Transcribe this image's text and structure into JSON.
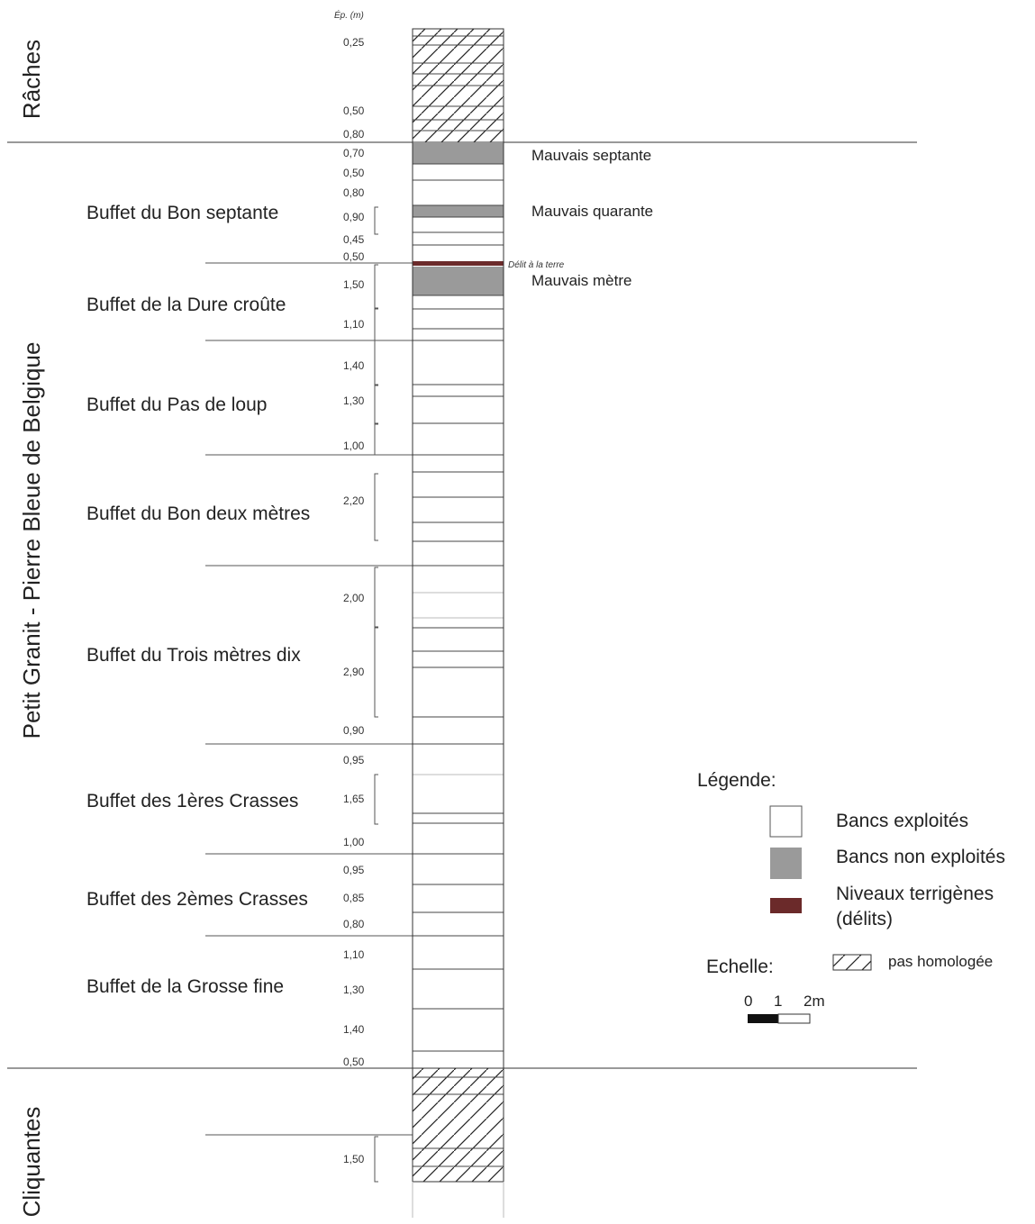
{
  "header": {
    "thickness_label": "Ép. (m)"
  },
  "groups": {
    "raches": "Râches",
    "petit_granit": "Petit Granit - Pierre Bleue de Belgique",
    "cliquantes": "Cliquantes"
  },
  "buffets": {
    "bon_septante": "Buffet du Bon septante",
    "dure_croute": "Buffet de la Dure croûte",
    "pas_de_loup": "Buffet du Pas de loup",
    "bon_deux_metres": "Buffet du Bon deux mètres",
    "trois_metres_dix": "Buffet du Trois mètres dix",
    "premieres_crasses": "Buffet des 1ères Crasses",
    "deuxiemes_crasses": "Buffet des 2èmes Crasses",
    "grosse_fine": "Buffet de la Grosse fine"
  },
  "thicknesses": {
    "t01": "0,25",
    "t02": "0,50",
    "t03": "0,80",
    "t04": "0,70",
    "t05": "0,50",
    "t06": "0,80",
    "t07": "0,90",
    "t08": "0,45",
    "t09": "0,50",
    "t10": "1,50",
    "t11": "1,10",
    "t12": "1,40",
    "t13": "1,30",
    "t14": "1,00",
    "t15": "2,20",
    "t16": "2,00",
    "t17": "2,90",
    "t18": "0,90",
    "t19": "0,95",
    "t20": "1,65",
    "t21": "1,00",
    "t22": "0,95",
    "t23": "0,85",
    "t24": "0,80",
    "t25": "1,10",
    "t26": "1,30",
    "t27": "1,40",
    "t28": "0,50",
    "t29": "1,50"
  },
  "bank_labels": {
    "mauvais_septante": "Mauvais septante",
    "mauvais_quarante": "Mauvais quarante",
    "delit_terre": "Délit à la terre",
    "mauvais_metre": "Mauvais mètre"
  },
  "legend": {
    "title": "Légende:",
    "exploited": "Bancs exploités",
    "not_exploited": "Bancs non exploités",
    "terrigenous_line1": "Niveaux terrigènes",
    "terrigenous_line2": "(délits)",
    "not_approved": "pas homologée",
    "scale_title": "Echelle:",
    "scale_0": "0",
    "scale_1": "1",
    "scale_2": "2m"
  },
  "colors": {
    "exploited": "#ffffff",
    "not_exploited": "#9a9a9a",
    "terrigenous": "#6b2a2a",
    "line": "#333333"
  }
}
